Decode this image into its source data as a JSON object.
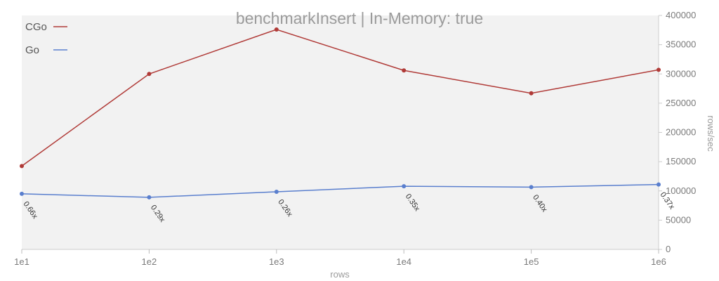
{
  "chart_data": {
    "type": "line",
    "title": "benchmarkInsert | In-Memory: true",
    "xlabel": "rows",
    "ylabel": "rows/sec",
    "categories": [
      "1e1",
      "1e2",
      "1e3",
      "1e4",
      "1e5",
      "1e6"
    ],
    "ylim": [
      0,
      400000
    ],
    "yticks": [
      0,
      50000,
      100000,
      150000,
      200000,
      250000,
      300000,
      350000,
      400000
    ],
    "yaxis_side": "right",
    "legend_position": "top-left",
    "grid": false,
    "series": [
      {
        "name": "CGo",
        "color": "#b03a37",
        "values": [
          142500,
          300000,
          376000,
          306000,
          267000,
          307000
        ]
      },
      {
        "name": "Go",
        "color": "#5a7fce",
        "values": [
          95000,
          89000,
          98500,
          108000,
          106500,
          111000
        ]
      }
    ],
    "annotations": [
      "0.66x",
      "0.29x",
      "0.26x",
      "0.35x",
      "0.40x",
      "0.37x"
    ]
  }
}
